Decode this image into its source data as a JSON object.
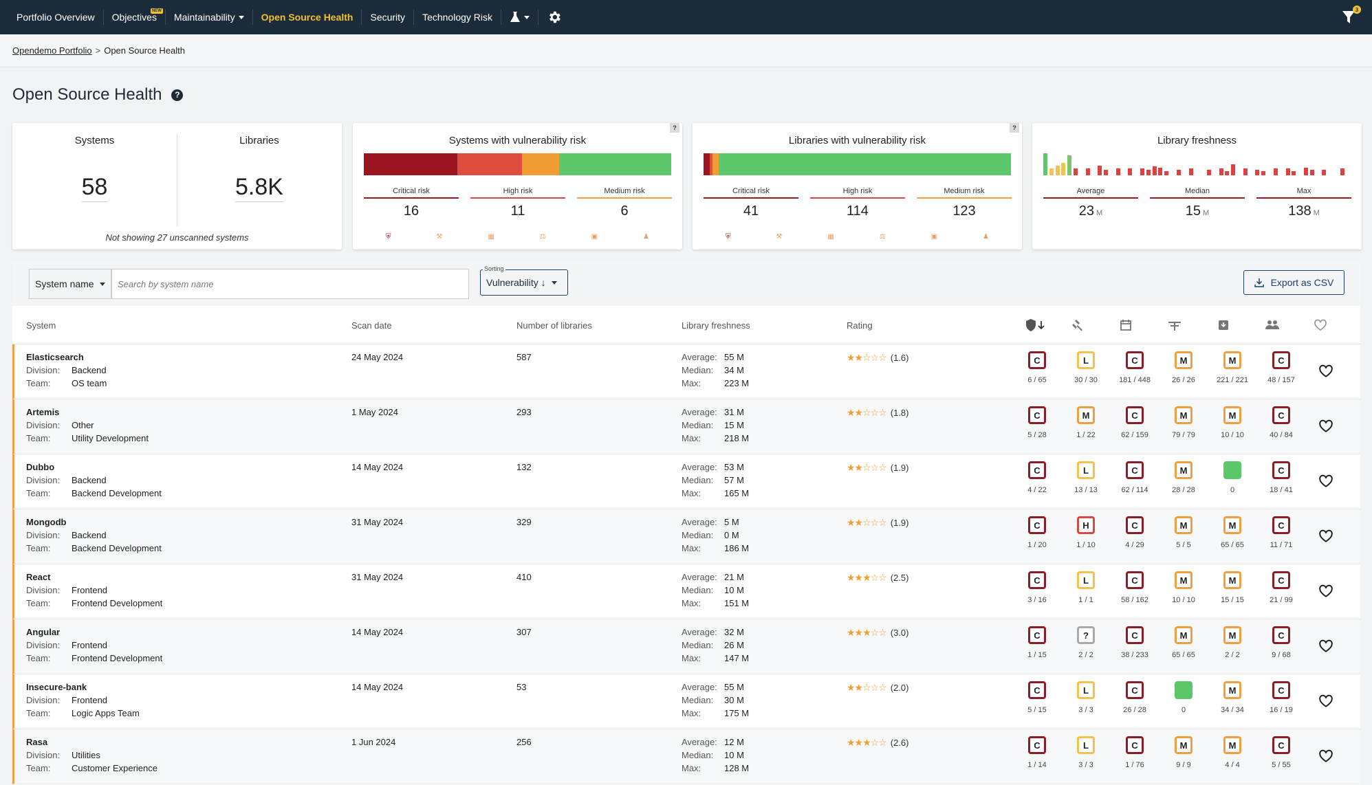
{
  "nav": {
    "items": [
      "Portfolio Overview",
      "Objectives",
      "Maintainability",
      "Open Source Health",
      "Security",
      "Technology Risk"
    ],
    "new_badge": "NEW",
    "filter_count": "3"
  },
  "breadcrumb": {
    "root": "Opendemo Portfolio",
    "sep": ">",
    "current": "Open Source Health"
  },
  "page": {
    "title": "Open Source Health",
    "help": "?"
  },
  "summary": {
    "systems_label": "Systems",
    "systems_value": "58",
    "libraries_label": "Libraries",
    "libraries_value": "5.8K",
    "note": "Not showing 27 unscanned systems"
  },
  "sys_vuln": {
    "title": "Systems with vulnerability risk",
    "q": "?",
    "bar": [
      {
        "color": "#9c1622",
        "frac": 0.305
      },
      {
        "color": "#de4d3f",
        "frac": 0.21
      },
      {
        "color": "#ef9c34",
        "frac": 0.12
      },
      {
        "color": "#5cc86a",
        "frac": 0.365
      }
    ],
    "stats": [
      {
        "label": "Critical risk",
        "value": "16",
        "color": "#a0141e"
      },
      {
        "label": "High risk",
        "value": "11",
        "color": "#d84a40"
      },
      {
        "label": "Medium risk",
        "value": "6",
        "color": "#f0a040"
      }
    ]
  },
  "lib_vuln": {
    "title": "Libraries with vulnerability risk",
    "q": "?",
    "bar": [
      {
        "color": "#9c1622",
        "frac": 0.02
      },
      {
        "color": "#de4d3f",
        "frac": 0.01
      },
      {
        "color": "#ef9c34",
        "frac": 0.02
      },
      {
        "color": "#5cc86a",
        "frac": 0.95
      }
    ],
    "stats": [
      {
        "label": "Critical risk",
        "value": "41",
        "color": "#a0141e"
      },
      {
        "label": "High risk",
        "value": "114",
        "color": "#d84a40"
      },
      {
        "label": "Medium risk",
        "value": "123",
        "color": "#f0a040"
      }
    ]
  },
  "freshness": {
    "title": "Library freshness",
    "bars": [
      1,
      0.3,
      0.45,
      0.55,
      0.9,
      0.3,
      0,
      0.3,
      0,
      0.45,
      0.25,
      0,
      0.3,
      0,
      0.3,
      0,
      0.3,
      0.25,
      0.4,
      0.35,
      0.2,
      0,
      0.25,
      0,
      0.3,
      0,
      0,
      0.25,
      0,
      0.3,
      0.2,
      0.5,
      0,
      0.3,
      0,
      0.25,
      0.2,
      0,
      0.3,
      0,
      0.3,
      0.2,
      0,
      0.35,
      0.25,
      0,
      0.25,
      0,
      0,
      0.3,
      0
    ],
    "stats": [
      {
        "label": "Average",
        "value": "23",
        "unit": "M",
        "color": "#a0141e"
      },
      {
        "label": "Median",
        "value": "15",
        "unit": "M",
        "color": "#a0141e"
      },
      {
        "label": "Max",
        "value": "138",
        "unit": "M",
        "color": "#a0141e"
      }
    ]
  },
  "toolbar": {
    "filter_select": "System name",
    "search_placeholder": "Search by system name",
    "sort_label": "Sorting",
    "sort_value": "Vulnerability ↓",
    "export_label": "Export as CSV"
  },
  "table": {
    "headers": {
      "system": "System",
      "scan": "Scan date",
      "libs": "Number of libraries",
      "fresh": "Library freshness",
      "rating": "Rating"
    },
    "labels": {
      "division": "Division:",
      "team": "Team:",
      "average": "Average:",
      "median": "Median:",
      "max": "Max:"
    },
    "rows": [
      {
        "name": "Elasticsearch",
        "division": "Backend",
        "team": "OS team",
        "scan": "24 May 2024",
        "libs": "587",
        "avg": "55 M",
        "med": "34 M",
        "max": "223 M",
        "stars": "★★☆☆☆",
        "rating": "(1.6)",
        "badges": [
          {
            "t": "C",
            "n": "6 / 65"
          },
          {
            "t": "L",
            "n": "30 / 30"
          },
          {
            "t": "C",
            "n": "181 / 448"
          },
          {
            "t": "M",
            "n": "26 / 26"
          },
          {
            "t": "M",
            "n": "221 / 221"
          },
          {
            "t": "C",
            "n": "48 / 157"
          }
        ]
      },
      {
        "name": "Artemis",
        "division": "Other",
        "team": "Utility Development",
        "scan": "1 May 2024",
        "libs": "293",
        "avg": "31 M",
        "med": "15 M",
        "max": "218 M",
        "stars": "★★☆☆☆",
        "rating": "(1.8)",
        "badges": [
          {
            "t": "C",
            "n": "5 / 28"
          },
          {
            "t": "M",
            "n": "1 / 22"
          },
          {
            "t": "C",
            "n": "62 / 159"
          },
          {
            "t": "M",
            "n": "79 / 79"
          },
          {
            "t": "M",
            "n": "10 / 10"
          },
          {
            "t": "C",
            "n": "40 / 84"
          }
        ]
      },
      {
        "name": "Dubbo",
        "division": "Backend",
        "team": "Backend Development",
        "scan": "14 May 2024",
        "libs": "132",
        "avg": "53 M",
        "med": "57 M",
        "max": "165 M",
        "stars": "★★☆☆☆",
        "rating": "(1.9)",
        "badges": [
          {
            "t": "C",
            "n": "4 / 22"
          },
          {
            "t": "L",
            "n": "13 / 13"
          },
          {
            "t": "C",
            "n": "62 / 114"
          },
          {
            "t": "M",
            "n": "28 / 28"
          },
          {
            "t": "G",
            "n": "0"
          },
          {
            "t": "C",
            "n": "18 / 41"
          }
        ]
      },
      {
        "name": "Mongodb",
        "division": "Backend",
        "team": "Backend Development",
        "scan": "31 May 2024",
        "libs": "329",
        "avg": "5 M",
        "med": "0 M",
        "max": "186 M",
        "stars": "★★☆☆☆",
        "rating": "(1.9)",
        "badges": [
          {
            "t": "C",
            "n": "1 / 20"
          },
          {
            "t": "H",
            "n": "1 / 10"
          },
          {
            "t": "C",
            "n": "4 / 29"
          },
          {
            "t": "M",
            "n": "5 / 5"
          },
          {
            "t": "M",
            "n": "65 / 65"
          },
          {
            "t": "C",
            "n": "11 / 71"
          }
        ]
      },
      {
        "name": "React",
        "division": "Frontend",
        "team": "Frontend Development",
        "scan": "31 May 2024",
        "libs": "410",
        "avg": "21 M",
        "med": "10 M",
        "max": "151 M",
        "stars": "★★★☆☆",
        "rating": "(2.5)",
        "badges": [
          {
            "t": "C",
            "n": "3 / 16"
          },
          {
            "t": "L",
            "n": "1 / 1"
          },
          {
            "t": "C",
            "n": "58 / 162"
          },
          {
            "t": "M",
            "n": "10 / 10"
          },
          {
            "t": "M",
            "n": "15 / 15"
          },
          {
            "t": "C",
            "n": "21 / 99"
          }
        ]
      },
      {
        "name": "Angular",
        "division": "Frontend",
        "team": "Frontend Development",
        "scan": "14 May 2024",
        "libs": "307",
        "avg": "32 M",
        "med": "26 M",
        "max": "147 M",
        "stars": "★★★☆☆",
        "rating": "(3.0)",
        "badges": [
          {
            "t": "C",
            "n": "1 / 15"
          },
          {
            "t": "?",
            "n": "2 / 2"
          },
          {
            "t": "C",
            "n": "38 / 233"
          },
          {
            "t": "M",
            "n": "65 / 65"
          },
          {
            "t": "M",
            "n": "2 / 2"
          },
          {
            "t": "C",
            "n": "9 / 68"
          }
        ]
      },
      {
        "name": "Insecure-bank",
        "division": "Frontend",
        "team": "Logic Apps Team",
        "scan": "14 May 2024",
        "libs": "53",
        "avg": "55 M",
        "med": "30 M",
        "max": "175 M",
        "stars": "★★☆☆☆",
        "rating": "(2.0)",
        "badges": [
          {
            "t": "C",
            "n": "5 / 15"
          },
          {
            "t": "L",
            "n": "3 / 3"
          },
          {
            "t": "C",
            "n": "26 / 28"
          },
          {
            "t": "G",
            "n": "0"
          },
          {
            "t": "M",
            "n": "34 / 34"
          },
          {
            "t": "C",
            "n": "16 / 19"
          }
        ]
      },
      {
        "name": "Rasa",
        "division": "Utilities",
        "team": "Customer Experience",
        "scan": "1 Jun 2024",
        "libs": "256",
        "avg": "12 M",
        "med": "10 M",
        "max": "128 M",
        "stars": "★★★☆☆",
        "rating": "(2.6)",
        "badges": [
          {
            "t": "C",
            "n": "1 / 14"
          },
          {
            "t": "L",
            "n": "3 / 3"
          },
          {
            "t": "C",
            "n": "1 / 76"
          },
          {
            "t": "M",
            "n": "9 / 9"
          },
          {
            "t": "M",
            "n": "4 / 4"
          },
          {
            "t": "C",
            "n": "5 / 55"
          }
        ]
      }
    ]
  }
}
